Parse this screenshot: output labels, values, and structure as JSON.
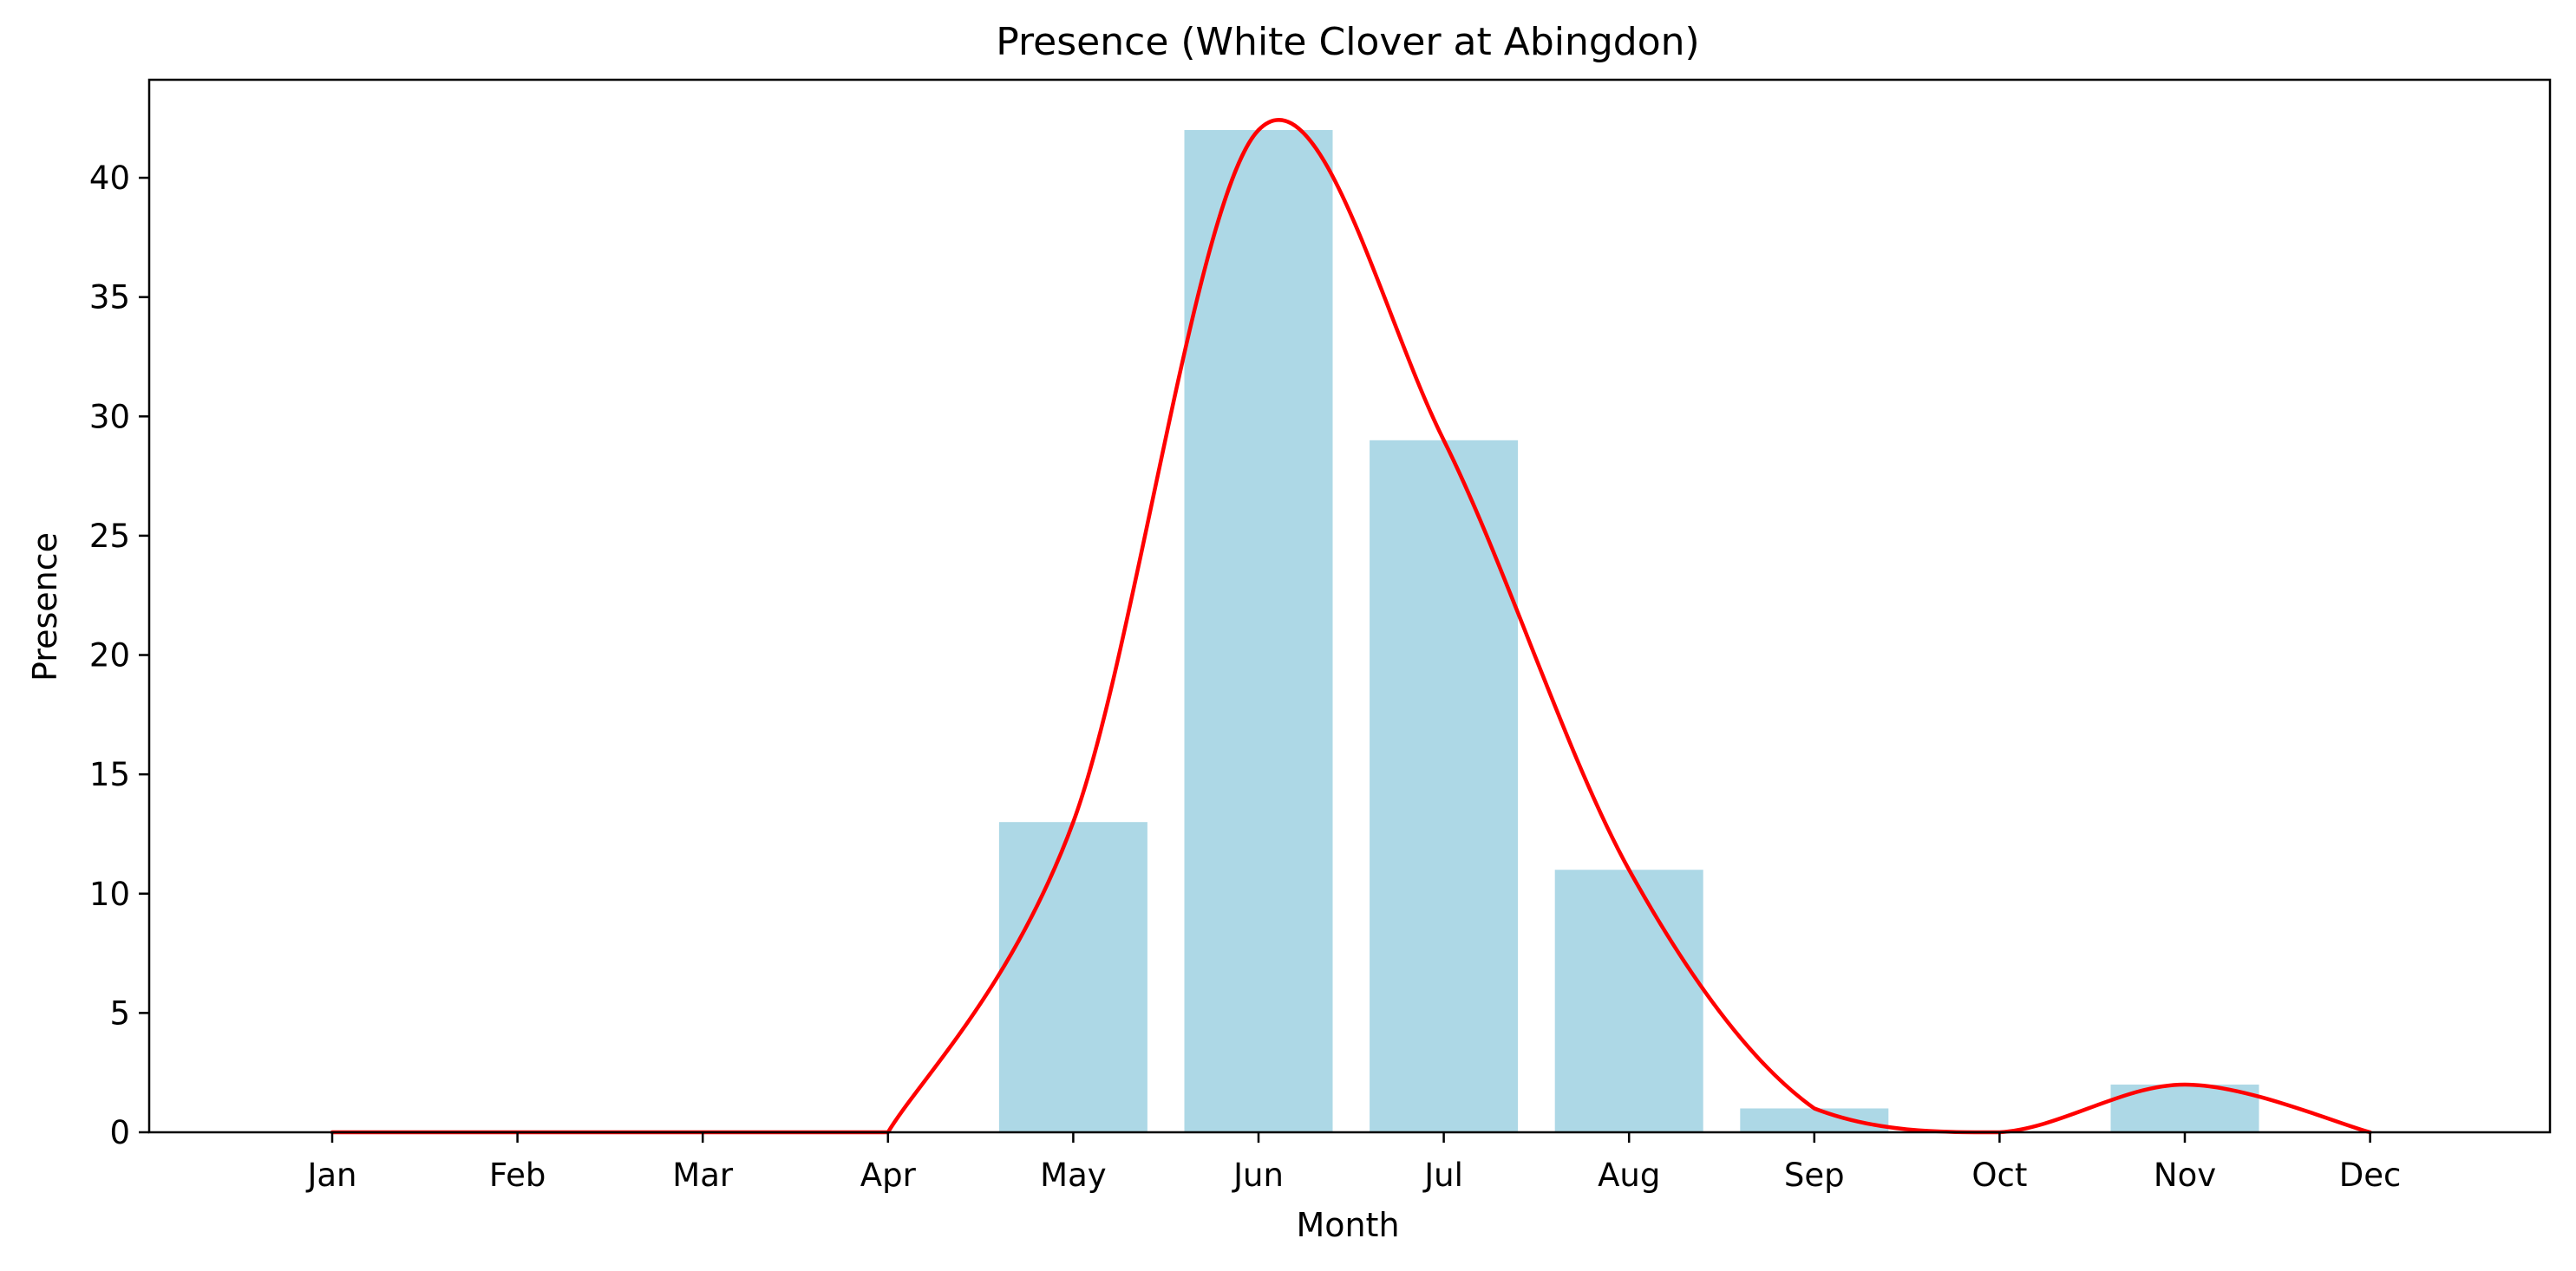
{
  "chart_data": {
    "type": "bar",
    "title": "Presence (White Clover at Abingdon)",
    "xlabel": "Month",
    "ylabel": "Presence",
    "categories": [
      "Jan",
      "Feb",
      "Mar",
      "Apr",
      "May",
      "Jun",
      "Jul",
      "Aug",
      "Sep",
      "Oct",
      "Nov",
      "Dec"
    ],
    "values": [
      0,
      0,
      0,
      0,
      13,
      42,
      29,
      11,
      1,
      0,
      2,
      0
    ],
    "ylim": [
      0,
      44
    ],
    "yticks": [
      0,
      5,
      10,
      15,
      20,
      25,
      30,
      35,
      40
    ],
    "grid": false,
    "legend": "none",
    "overlay_line": "smoothed curve through bar values",
    "colors": {
      "bars": "#add8e6",
      "line": "#ff0000",
      "axes": "#000000"
    }
  }
}
